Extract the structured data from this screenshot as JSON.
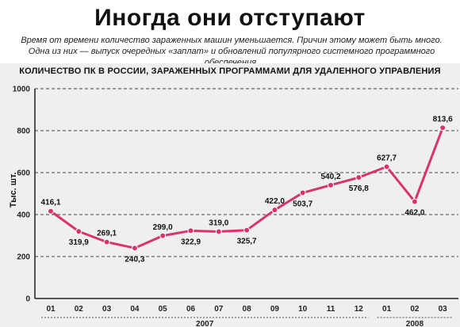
{
  "headline": "Иногда они отступают",
  "lead": "Время от времени количество зараженных машин уменьшается. Причин этому может быть много. Одна из них — выпуск очередных «заплат» и обновлений популярного системного программного обеспечения.",
  "colors": {
    "line": "#d9336b",
    "panel": "#efefef",
    "grid": "#444444"
  },
  "chart_data": {
    "type": "line",
    "title": "КОЛИЧЕСТВО ПК В РОССИИ, ЗАРАЖЕННЫХ ПРОГРАММАМИ ДЛЯ УДАЛЕННОГО УПРАВЛЕНИЯ",
    "ylabel": "Тыс. шт.",
    "xlabel": "",
    "ylim": [
      0,
      1000
    ],
    "yticks": [
      0,
      200,
      400,
      600,
      800,
      1000
    ],
    "grid": true,
    "categories": [
      "01",
      "02",
      "03",
      "04",
      "05",
      "06",
      "07",
      "08",
      "09",
      "10",
      "11",
      "12",
      "01",
      "02",
      "03"
    ],
    "year_groups": [
      {
        "label": "2007",
        "from": 0,
        "to": 11
      },
      {
        "label": "2008",
        "from": 12,
        "to": 14
      }
    ],
    "series": [
      {
        "values": [
          416.1,
          319.9,
          269.1,
          240.3,
          299.0,
          322.9,
          319.0,
          325.7,
          422.0,
          503.7,
          540.2,
          576.8,
          627.7,
          462.0,
          813.6
        ],
        "labels": [
          "416,1",
          "319,9",
          "269,1",
          "240,3",
          "299,0",
          "322,9",
          "319,0",
          "325,7",
          "422,0",
          "503,7",
          "540,2",
          "576,8",
          "627,7",
          "462,0",
          "813,6"
        ]
      }
    ]
  }
}
